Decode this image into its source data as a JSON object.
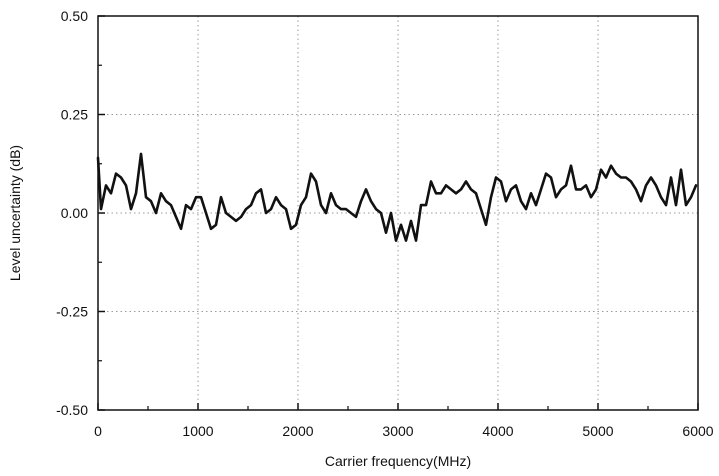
{
  "chart_data": {
    "type": "line",
    "title": "",
    "xlabel": "Carrier frequency(MHz)",
    "ylabel": "Level uncertainty (dB)",
    "xlim": [
      0,
      6000
    ],
    "ylim": [
      -0.5,
      0.5
    ],
    "xticks": [
      0,
      1000,
      2000,
      3000,
      4000,
      5000,
      6000
    ],
    "xtick_labels": [
      "0",
      "1000",
      "2000",
      "3000",
      "4000",
      "5000",
      "6000"
    ],
    "yticks": [
      -0.5,
      -0.25,
      0.0,
      0.25,
      0.5
    ],
    "ytick_labels": [
      "-0.50",
      "-0.25",
      "0.00",
      "0.25",
      "0.50"
    ],
    "grid": true,
    "legend": "none",
    "line_color": "#111111",
    "series": [
      {
        "x": [
          0,
          30,
          80,
          130,
          180,
          230,
          280,
          330,
          380,
          430,
          480,
          530,
          580,
          630,
          680,
          730,
          780,
          830,
          880,
          930,
          980,
          1030,
          1080,
          1130,
          1180,
          1230,
          1280,
          1330,
          1380,
          1430,
          1480,
          1530,
          1580,
          1630,
          1680,
          1730,
          1780,
          1830,
          1880,
          1930,
          1980,
          2030,
          2080,
          2130,
          2180,
          2230,
          2280,
          2330,
          2380,
          2430,
          2480,
          2530,
          2580,
          2630,
          2680,
          2730,
          2780,
          2830,
          2880,
          2930,
          2980,
          3030,
          3080,
          3130,
          3180,
          3230,
          3280,
          3330,
          3380,
          3430,
          3480,
          3530,
          3580,
          3630,
          3680,
          3730,
          3780,
          3830,
          3880,
          3930,
          3980,
          4030,
          4080,
          4130,
          4180,
          4230,
          4280,
          4330,
          4380,
          4430,
          4480,
          4530,
          4580,
          4630,
          4680,
          4730,
          4780,
          4830,
          4880,
          4930,
          4980,
          5030,
          5080,
          5130,
          5180,
          5230,
          5280,
          5330,
          5380,
          5430,
          5480,
          5530,
          5580,
          5630,
          5680,
          5730,
          5780,
          5830,
          5880,
          5930,
          5980
        ],
        "y": [
          0.14,
          0.01,
          0.07,
          0.05,
          0.1,
          0.09,
          0.07,
          0.01,
          0.05,
          0.15,
          0.04,
          0.03,
          0.0,
          0.05,
          0.03,
          0.02,
          -0.01,
          -0.04,
          0.02,
          0.01,
          0.04,
          0.04,
          0.0,
          -0.04,
          -0.03,
          0.04,
          0.0,
          -0.01,
          -0.02,
          -0.01,
          0.01,
          0.02,
          0.05,
          0.06,
          0.0,
          0.01,
          0.04,
          0.02,
          0.01,
          -0.04,
          -0.03,
          0.02,
          0.04,
          0.1,
          0.08,
          0.02,
          0.0,
          0.05,
          0.02,
          0.01,
          0.01,
          0.0,
          -0.01,
          0.03,
          0.06,
          0.03,
          0.01,
          0.0,
          -0.05,
          0.0,
          -0.07,
          -0.03,
          -0.07,
          -0.02,
          -0.07,
          0.02,
          0.02,
          0.08,
          0.05,
          0.05,
          0.07,
          0.06,
          0.05,
          0.06,
          0.08,
          0.06,
          0.05,
          0.01,
          -0.03,
          0.04,
          0.09,
          0.08,
          0.03,
          0.06,
          0.07,
          0.03,
          0.01,
          0.05,
          0.02,
          0.06,
          0.1,
          0.09,
          0.04,
          0.06,
          0.07,
          0.12,
          0.06,
          0.06,
          0.07,
          0.04,
          0.06,
          0.11,
          0.09,
          0.12,
          0.1,
          0.09,
          0.09,
          0.08,
          0.06,
          0.03,
          0.07,
          0.09,
          0.07,
          0.04,
          0.02,
          0.09,
          0.02,
          0.11,
          0.02,
          0.04,
          0.07
        ]
      }
    ]
  }
}
